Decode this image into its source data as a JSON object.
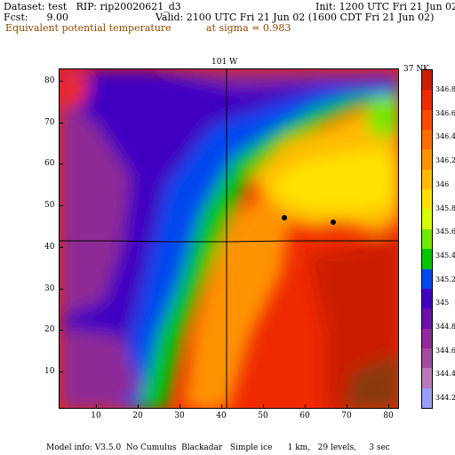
{
  "header": {
    "dataset": "Dataset: test   RIP: rip20020621_d3",
    "init": "Init: 1200 UTC Fri 21 Jun 02",
    "fcst": "Fcst:      9.00",
    "valid": "Valid: 2100 UTC Fri 21 Jun 02 (1600 CDT Fri 21 Jun 02)",
    "variable": "Equivalent potential temperature",
    "level": "at sigma = 0.983"
  },
  "map": {
    "meridian_label": "101 W",
    "parallel_label": "37 N",
    "unit_label": "K",
    "x_ticks": [
      "10",
      "20",
      "30",
      "40",
      "50",
      "60",
      "70",
      "80"
    ],
    "y_ticks": [
      "10",
      "20",
      "30",
      "40",
      "50",
      "60",
      "70",
      "80"
    ],
    "colorbar": {
      "labels": [
        "346.8",
        "346.6",
        "346.4",
        "346.2",
        "346",
        "345.8",
        "345.6",
        "345.4",
        "345.2",
        "345",
        "344.8",
        "344.6",
        "344.4",
        "344.2"
      ],
      "colors": [
        "#cc1e00",
        "#ef2a00",
        "#ff4a00",
        "#ff6c00",
        "#ff9200",
        "#ffbc00",
        "#ffe100",
        "#d6ff00",
        "#75e800",
        "#00c400",
        "#0047ef",
        "#3f00c2",
        "#6b10a8",
        "#8e2b96",
        "#a04d9e",
        "#b87ab8",
        "#9a9ef5"
      ]
    }
  },
  "footer": {
    "model_info": "Model info: V3.5.0  No Cumulus  Blackadar   Simple ice      1 km,   29 levels,     3 sec"
  }
}
